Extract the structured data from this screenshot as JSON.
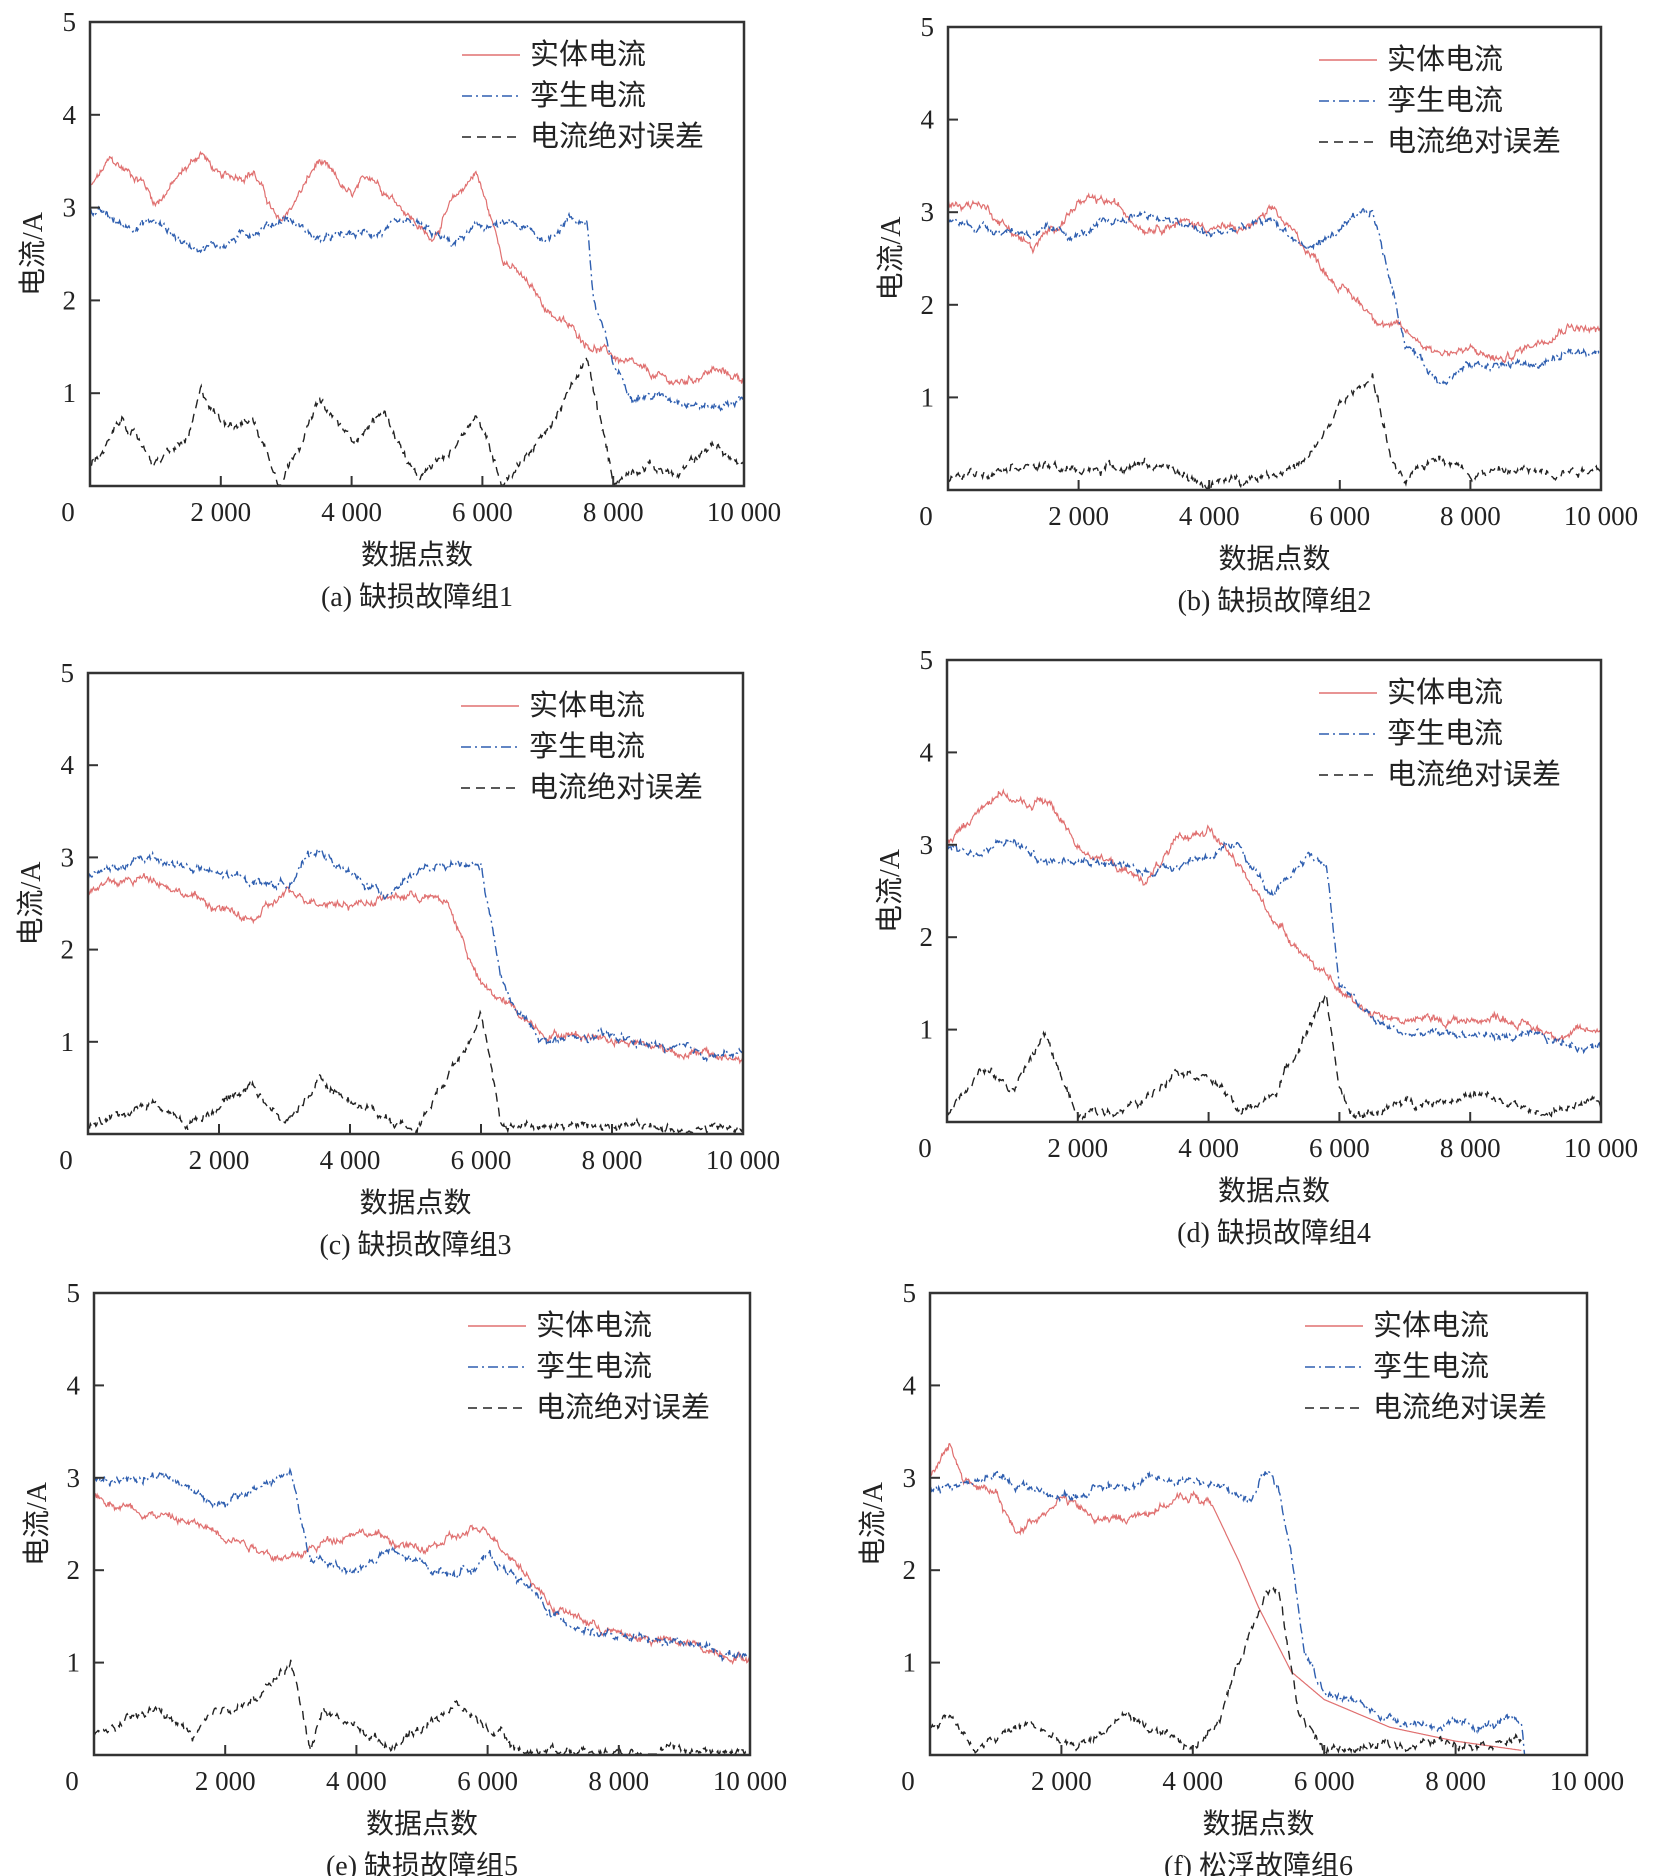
{
  "chart_data": [
    {
      "type": "line",
      "title": "(a) 缺损故障组1",
      "xlabel": "数据点数",
      "ylabel": "电流/A",
      "xlim": [
        0,
        10000
      ],
      "ylim": [
        0,
        5
      ],
      "xticks": [
        "0",
        "2 000",
        "4 000",
        "6 000",
        "8 000",
        "10 000"
      ],
      "yticks": [
        "1",
        "2",
        "3",
        "4",
        "5"
      ],
      "legend_position": "top-right",
      "series": [
        {
          "name": "实体电流",
          "style": "solid",
          "color": "#e07070",
          "x": [
            0,
            300,
            800,
            1000,
            1700,
            2000,
            2500,
            2900,
            3500,
            4000,
            4300,
            4800,
            5200,
            5500,
            5900,
            6300,
            7000,
            7600,
            8000,
            8500,
            9000,
            9500,
            10000
          ],
          "y": [
            3.2,
            3.5,
            3.3,
            3.05,
            3.6,
            3.3,
            3.4,
            2.8,
            3.5,
            3.1,
            3.35,
            3.0,
            2.65,
            3.0,
            3.4,
            2.5,
            1.9,
            1.55,
            1.4,
            1.2,
            1.1,
            1.25,
            1.15
          ]
        },
        {
          "name": "孪生电流",
          "style": "dashdot",
          "color": "#2f5fb0",
          "x": [
            0,
            500,
            1000,
            1500,
            2000,
            2500,
            3000,
            3500,
            4000,
            4500,
            5000,
            5500,
            6000,
            6500,
            7000,
            7300,
            7600,
            7700,
            8000,
            8300,
            9000,
            9500,
            10000
          ],
          "y": [
            3.0,
            2.8,
            2.85,
            2.6,
            2.6,
            2.75,
            2.9,
            2.65,
            2.7,
            2.75,
            2.8,
            2.6,
            2.8,
            2.8,
            2.65,
            2.9,
            2.85,
            2.0,
            1.3,
            1.0,
            0.95,
            0.85,
            0.95
          ]
        },
        {
          "name": "电流绝对误差",
          "style": "dashed",
          "color": "#222222",
          "x": [
            0,
            500,
            1000,
            1500,
            1700,
            2000,
            2500,
            2900,
            3500,
            4000,
            4500,
            5000,
            5500,
            5900,
            6300,
            7000,
            7600,
            8000,
            8500,
            9000,
            9500,
            10000
          ],
          "y": [
            0.2,
            0.7,
            0.25,
            0.5,
            1.0,
            0.7,
            0.7,
            0.05,
            0.9,
            0.5,
            0.8,
            0.05,
            0.35,
            0.8,
            0.05,
            0.6,
            1.35,
            0.05,
            0.25,
            0.1,
            0.45,
            0.2
          ]
        }
      ]
    },
    {
      "type": "line",
      "title": "(b) 缺损故障组2",
      "xlabel": "数据点数",
      "ylabel": "电流/A",
      "xlim": [
        0,
        10000
      ],
      "ylim": [
        0,
        5
      ],
      "xticks": [
        "0",
        "2 000",
        "4 000",
        "6 000",
        "8 000",
        "10 000"
      ],
      "yticks": [
        "1",
        "2",
        "3",
        "4",
        "5"
      ],
      "legend_position": "top-right",
      "series": [
        {
          "name": "实体电流",
          "style": "solid",
          "color": "#e07070",
          "x": [
            0,
            500,
            1300,
            2000,
            2500,
            3000,
            3500,
            4000,
            4500,
            5000,
            5500,
            6000,
            6500,
            7000,
            7500,
            8000,
            8500,
            9000,
            9500,
            10000
          ],
          "y": [
            3.1,
            3.1,
            2.6,
            3.1,
            3.1,
            2.85,
            2.9,
            2.85,
            2.8,
            3.0,
            2.6,
            2.2,
            1.9,
            1.7,
            1.5,
            1.5,
            1.4,
            1.6,
            1.8,
            1.7
          ]
        },
        {
          "name": "孪生电流",
          "style": "dashdot",
          "color": "#2f5fb0",
          "x": [
            0,
            1000,
            2000,
            3000,
            4000,
            5000,
            5500,
            6000,
            6500,
            6800,
            7000,
            7500,
            8000,
            9000,
            10000
          ],
          "y": [
            2.9,
            2.8,
            2.75,
            3.0,
            2.75,
            2.9,
            2.6,
            2.8,
            3.0,
            2.2,
            1.6,
            1.2,
            1.35,
            1.35,
            1.55
          ]
        },
        {
          "name": "电流绝对误差",
          "style": "dashed",
          "color": "#222222",
          "x": [
            0,
            1000,
            2000,
            3000,
            4000,
            5000,
            5500,
            6000,
            6500,
            6800,
            7000,
            7500,
            8000,
            9000,
            10000
          ],
          "y": [
            0.1,
            0.3,
            0.2,
            0.3,
            0.05,
            0.2,
            0.3,
            0.9,
            1.25,
            0.3,
            0.05,
            0.4,
            0.2,
            0.2,
            0.25
          ]
        }
      ]
    },
    {
      "type": "line",
      "title": "(c) 缺损故障组3",
      "xlabel": "数据点数",
      "ylabel": "电流/A",
      "xlim": [
        0,
        10000
      ],
      "ylim": [
        0,
        5
      ],
      "xticks": [
        "0",
        "2 000",
        "4 000",
        "6 000",
        "8 000",
        "10 000"
      ],
      "yticks": [
        "1",
        "2",
        "3",
        "4",
        "5"
      ],
      "legend_position": "top-right",
      "series": [
        {
          "name": "实体电流",
          "style": "solid",
          "color": "#e07070",
          "x": [
            0,
            1000,
            1500,
            2500,
            3000,
            4000,
            5000,
            5500,
            6000,
            6500,
            7000,
            8000,
            9000,
            10000
          ],
          "y": [
            2.65,
            2.8,
            2.6,
            2.3,
            2.6,
            2.5,
            2.6,
            2.5,
            1.6,
            1.35,
            1.1,
            1.05,
            0.9,
            0.8
          ]
        },
        {
          "name": "孪生电流",
          "style": "dashdot",
          "color": "#2f5fb0",
          "x": [
            0,
            1000,
            2000,
            3000,
            3500,
            4000,
            4500,
            5000,
            6000,
            6300,
            6500,
            7000,
            8000,
            9000,
            10000
          ],
          "y": [
            2.8,
            3.0,
            2.8,
            2.7,
            3.1,
            2.8,
            2.6,
            2.85,
            2.9,
            1.7,
            1.35,
            1.0,
            1.05,
            0.9,
            0.85
          ]
        },
        {
          "name": "电流绝对误差",
          "style": "dashed",
          "color": "#222222",
          "x": [
            0,
            1000,
            1500,
            2500,
            3000,
            3500,
            4500,
            5000,
            6000,
            6300,
            7000,
            10000
          ],
          "y": [
            0.1,
            0.35,
            0.1,
            0.55,
            0.1,
            0.55,
            0.2,
            0.05,
            1.3,
            0.1,
            0.1,
            0.05
          ]
        }
      ]
    },
    {
      "type": "line",
      "title": "(d) 缺损故障组4",
      "xlabel": "数据点数",
      "ylabel": "电流/A",
      "xlim": [
        0,
        10000
      ],
      "ylim": [
        0,
        5
      ],
      "xticks": [
        "0",
        "2 000",
        "4 000",
        "6 000",
        "8 000",
        "10 000"
      ],
      "yticks": [
        "1",
        "2",
        "3",
        "4",
        "5"
      ],
      "legend_position": "top-right",
      "series": [
        {
          "name": "实体电流",
          "style": "solid",
          "color": "#e07070",
          "x": [
            0,
            800,
            1200,
            1500,
            2000,
            3000,
            3500,
            4000,
            4500,
            5000,
            5500,
            6000,
            6500,
            7000,
            8000,
            8500,
            9000,
            9500,
            10000
          ],
          "y": [
            3.0,
            3.6,
            3.4,
            3.5,
            3.0,
            2.6,
            3.0,
            3.2,
            2.7,
            2.2,
            1.8,
            1.4,
            1.2,
            1.1,
            1.1,
            1.15,
            1.0,
            0.95,
            1.0
          ]
        },
        {
          "name": "孪生电流",
          "style": "dashdot",
          "color": "#2f5fb0",
          "x": [
            0,
            500,
            1000,
            1500,
            2000,
            2500,
            3000,
            4000,
            4500,
            5000,
            5500,
            5800,
            6000,
            6500,
            7000,
            8000,
            9000,
            10000
          ],
          "y": [
            3.0,
            2.9,
            3.05,
            2.8,
            2.9,
            2.8,
            2.7,
            2.9,
            2.95,
            2.4,
            2.9,
            2.8,
            1.5,
            1.1,
            0.95,
            0.95,
            0.9,
            0.8
          ]
        },
        {
          "name": "电流绝对误差",
          "style": "dashed",
          "color": "#222222",
          "x": [
            0,
            500,
            1000,
            1500,
            2000,
            3000,
            3500,
            4000,
            4500,
            5000,
            5500,
            5800,
            6000,
            6200,
            7000,
            8000,
            9000,
            10000
          ],
          "y": [
            0.1,
            0.6,
            0.35,
            0.95,
            0.05,
            0.2,
            0.6,
            0.5,
            0.1,
            0.3,
            1.0,
            1.4,
            0.3,
            0.05,
            0.2,
            0.3,
            0.1,
            0.2
          ]
        }
      ]
    },
    {
      "type": "line",
      "title": "(e) 缺损故障组5",
      "xlabel": "数据点数",
      "ylabel": "电流/A",
      "xlim": [
        0,
        10000
      ],
      "ylim": [
        0,
        5
      ],
      "xticks": [
        "0",
        "2 000",
        "4 000",
        "6 000",
        "8 000",
        "10 000"
      ],
      "yticks": [
        "1",
        "2",
        "3",
        "4",
        "5"
      ],
      "legend_position": "top-right",
      "series": [
        {
          "name": "实体电流",
          "style": "solid",
          "color": "#e07070",
          "x": [
            0,
            1000,
            2000,
            3000,
            3500,
            4000,
            5000,
            5500,
            6000,
            6500,
            7000,
            8000,
            9000,
            10000
          ],
          "y": [
            2.8,
            2.6,
            2.4,
            2.1,
            2.3,
            2.45,
            2.2,
            2.35,
            2.45,
            2.05,
            1.6,
            1.3,
            1.2,
            1.05
          ]
        },
        {
          "name": "孪生电流",
          "style": "dashdot",
          "color": "#2f5fb0",
          "x": [
            0,
            1000,
            2000,
            2500,
            3000,
            3300,
            4000,
            4500,
            5000,
            5500,
            6000,
            6500,
            7000,
            8000,
            9000,
            10000
          ],
          "y": [
            2.95,
            3.05,
            2.7,
            2.9,
            3.05,
            2.1,
            2.0,
            2.2,
            2.05,
            1.95,
            2.15,
            1.9,
            1.5,
            1.25,
            1.2,
            1.05
          ]
        },
        {
          "name": "电流绝对误差",
          "style": "dashed",
          "color": "#222222",
          "x": [
            0,
            1000,
            1500,
            2000,
            2500,
            3000,
            3300,
            3500,
            4500,
            5000,
            5500,
            6000,
            6500,
            10000
          ],
          "y": [
            0.2,
            0.5,
            0.2,
            0.5,
            0.6,
            1.0,
            0.1,
            0.5,
            0.1,
            0.3,
            0.55,
            0.3,
            0.05,
            0.05
          ]
        }
      ]
    },
    {
      "type": "line",
      "title": "(f) 松浮故障组6",
      "xlabel": "数据点数",
      "ylabel": "电流/A",
      "xlim": [
        0,
        10000
      ],
      "ylim": [
        0,
        5
      ],
      "xticks": [
        "0",
        "2 000",
        "4 000",
        "6 000",
        "8 000",
        "10 000"
      ],
      "yticks": [
        "1",
        "2",
        "3",
        "4",
        "5"
      ],
      "legend_position": "top-right",
      "series": [
        {
          "name": "实体电流",
          "style": "solid",
          "color": "#e07070",
          "x": [
            0,
            300,
            500,
            1000,
            1300,
            2000,
            2500,
            3000,
            3500,
            4000,
            4300,
            4700,
            5000,
            5500,
            6000,
            7000,
            8000,
            9000
          ],
          "y": [
            3.0,
            3.35,
            3.0,
            2.8,
            2.4,
            2.8,
            2.55,
            2.55,
            2.7,
            2.8,
            2.7,
            2.1,
            1.6,
            0.9,
            0.6,
            0.3,
            0.15,
            0.05
          ]
        },
        {
          "name": "孪生电流",
          "style": "dashdot",
          "color": "#2f5fb0",
          "x": [
            0,
            1000,
            2000,
            3000,
            4000,
            4900,
            5100,
            5300,
            5500,
            5700,
            6000,
            7000,
            8000,
            9000,
            9050
          ],
          "y": [
            2.9,
            3.0,
            2.8,
            2.95,
            3.0,
            2.75,
            3.1,
            2.9,
            2.2,
            1.2,
            0.7,
            0.4,
            0.3,
            0.35,
            0.0
          ]
        },
        {
          "name": "电流绝对误差",
          "style": "dashed",
          "color": "#222222",
          "x": [
            0,
            300,
            700,
            1500,
            2200,
            3000,
            3500,
            4000,
            4400,
            4800,
            5100,
            5300,
            5600,
            6000,
            7000,
            8000,
            9000
          ],
          "y": [
            0.3,
            0.45,
            0.05,
            0.35,
            0.05,
            0.45,
            0.2,
            0.05,
            0.4,
            1.2,
            1.8,
            1.8,
            0.5,
            0.05,
            0.1,
            0.15,
            0.15
          ]
        }
      ]
    }
  ]
}
